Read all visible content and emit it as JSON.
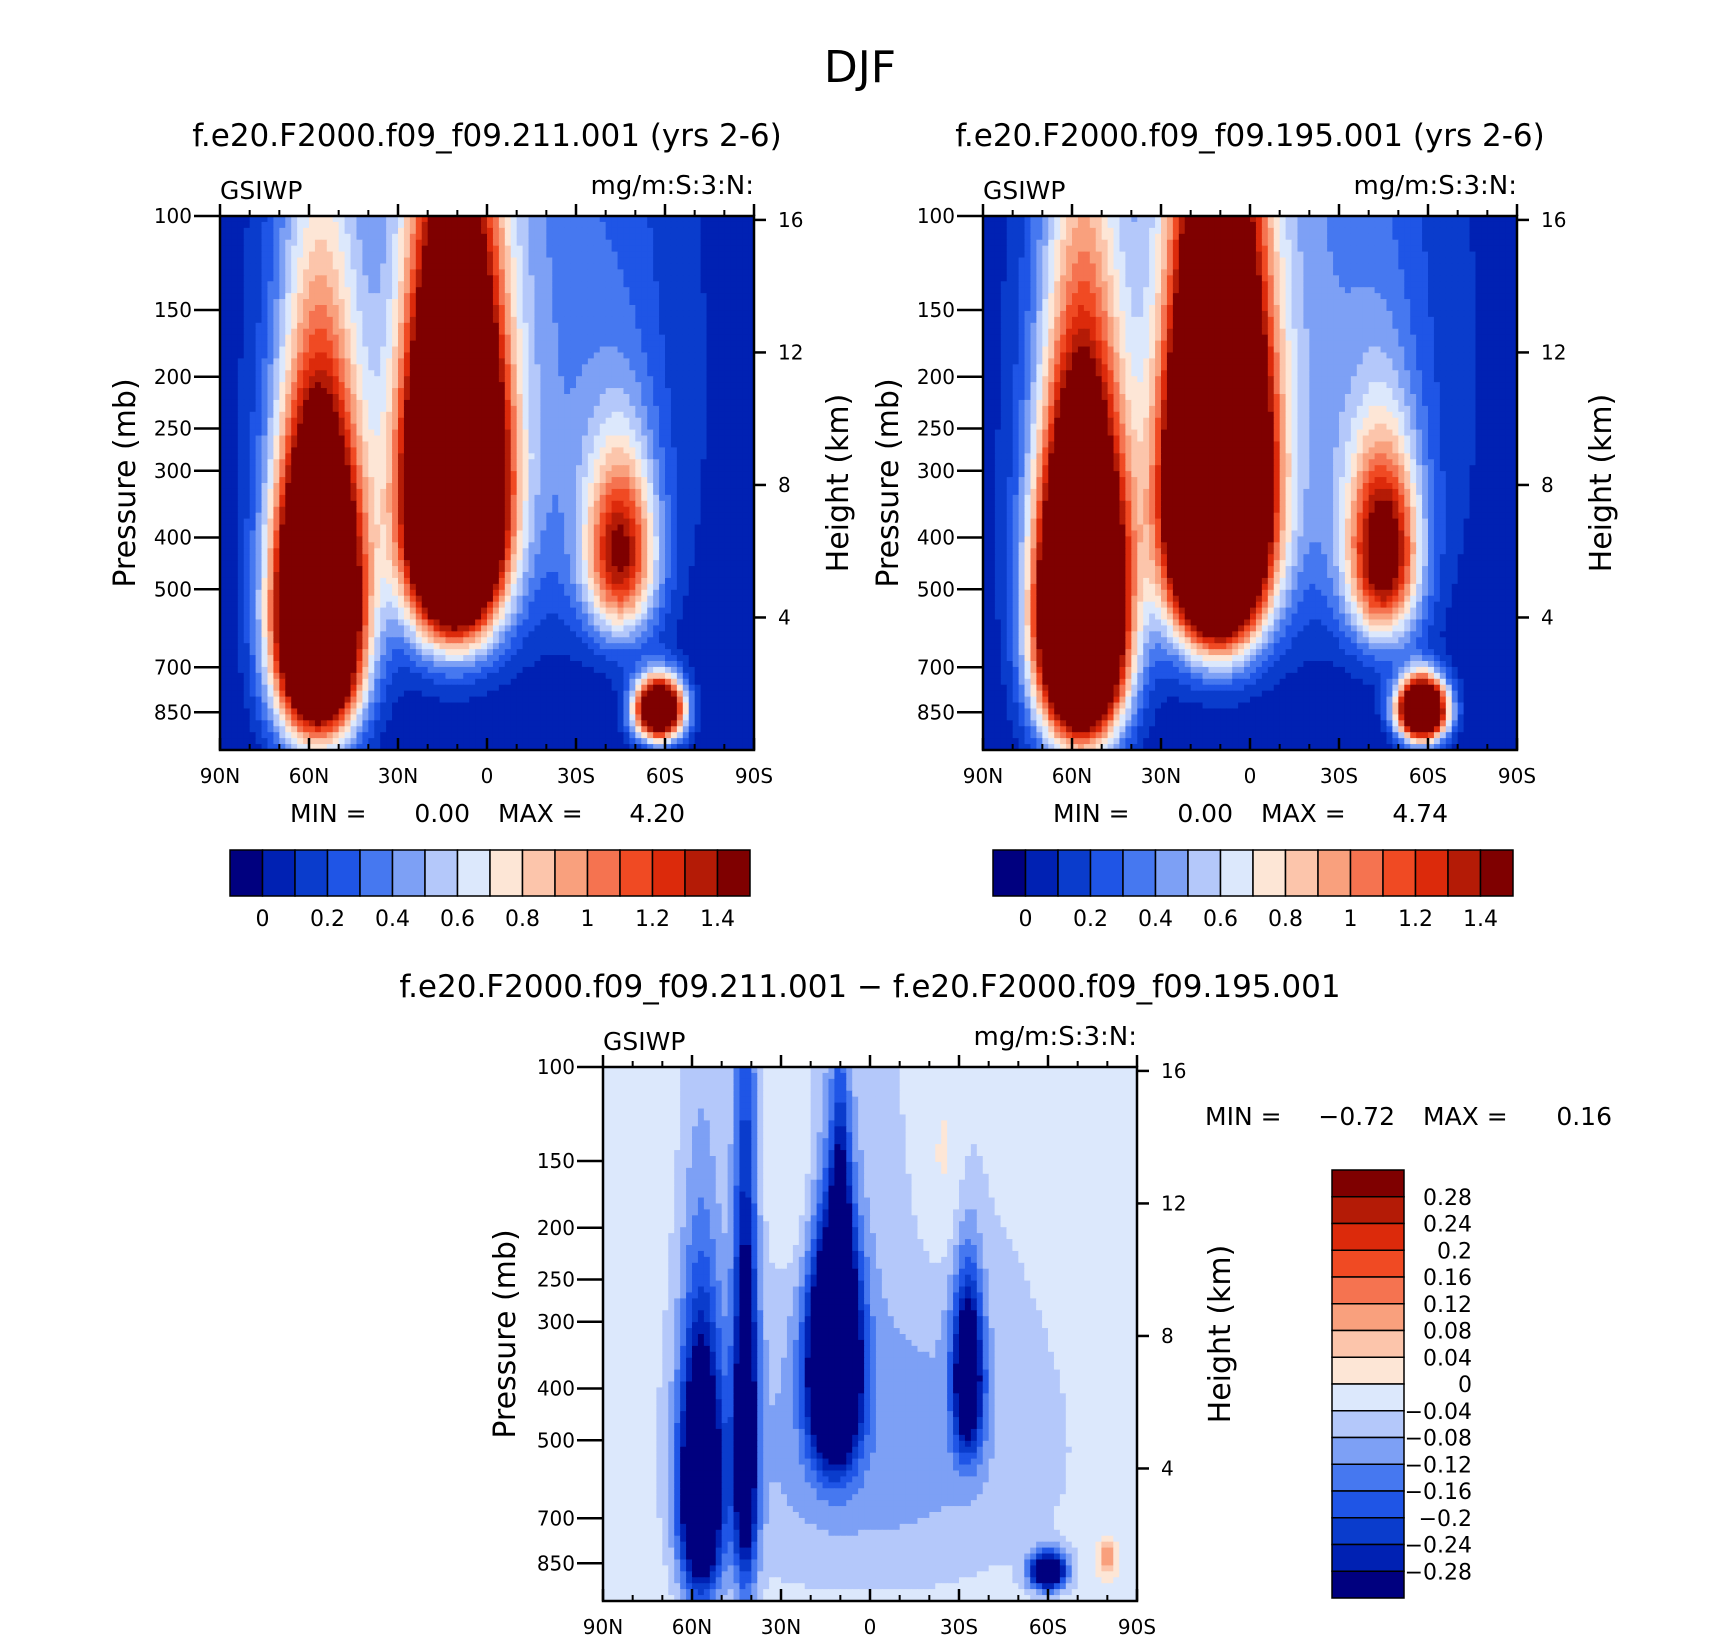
{
  "page_title": "DJF",
  "colors": {
    "abs_scale": [
      "#00007f",
      "#0021b3",
      "#0a3ccc",
      "#1f55e6",
      "#4678f0",
      "#7da0f5",
      "#b4c8fa",
      "#dce8fc",
      "#fde6d6",
      "#fcc5ab",
      "#f9a07d",
      "#f57350",
      "#f04a23",
      "#dc2a0b",
      "#b41b06",
      "#7f0000"
    ],
    "diff_scale": [
      "#7f0000",
      "#b41b06",
      "#dc2a0b",
      "#f04a23",
      "#f57350",
      "#f9a07d",
      "#fcc5ab",
      "#fde6d6",
      "#dce8fc",
      "#b4c8fa",
      "#7da0f5",
      "#4678f0",
      "#1f55e6",
      "#0a3ccc",
      "#0021b3",
      "#00007f"
    ]
  },
  "chart_data": [
    {
      "type": "heatmap",
      "title": "f.e20.F2000.f09_f09.211.001 (yrs 2-6)",
      "left_label": "GSIWP",
      "right_label": "mg/m:S:3:N:",
      "xlabel": "",
      "ylabel": "Pressure (mb)",
      "ylabel_right": "Height (km)",
      "x_ticks": [
        "90N",
        "60N",
        "30N",
        "0",
        "30S",
        "60S",
        "90S"
      ],
      "y_ticks": [
        "100",
        "150",
        "200",
        "250",
        "300",
        "400",
        "500",
        "700",
        "850"
      ],
      "y2_ticks": [
        "16",
        "12",
        "8",
        "4"
      ],
      "ylim": [
        100,
        1000
      ],
      "min_text": "MIN =",
      "min_value": "0.00",
      "max_text": "MAX =",
      "max_value": "4.20",
      "colorbar_labels": [
        "0",
        "0.2",
        "0.4",
        "0.6",
        "0.8",
        "1",
        "1.2",
        "1.4"
      ],
      "levels": [
        0,
        0.1,
        0.2,
        0.3,
        0.4,
        0.5,
        0.6,
        0.7,
        0.8,
        0.9,
        1.0,
        1.1,
        1.2,
        1.3,
        1.4
      ],
      "features": [
        {
          "lat": 11,
          "p": 340,
          "amp": 4.2,
          "slat": 15,
          "sp": 230
        },
        {
          "lat": 57,
          "p": 560,
          "amp": 3.6,
          "slat": 14,
          "sp": 340
        },
        {
          "lat": -45,
          "p": 430,
          "amp": 1.3,
          "slat": 12,
          "sp": 170
        },
        {
          "lat": -58,
          "p": 840,
          "amp": 2.5,
          "slat": 8,
          "sp": 110
        },
        {
          "lat": 0,
          "p": 200,
          "amp": 0.45,
          "slat": 60,
          "sp": 380
        }
      ]
    },
    {
      "type": "heatmap",
      "title": "f.e20.F2000.f09_f09.195.001 (yrs 2-6)",
      "left_label": "GSIWP",
      "right_label": "mg/m:S:3:N:",
      "xlabel": "",
      "ylabel": "Pressure (mb)",
      "ylabel_right": "Height (km)",
      "x_ticks": [
        "90N",
        "60N",
        "30N",
        "0",
        "30S",
        "60S",
        "90S"
      ],
      "y_ticks": [
        "100",
        "150",
        "200",
        "250",
        "300",
        "400",
        "500",
        "700",
        "850"
      ],
      "y2_ticks": [
        "16",
        "12",
        "8",
        "4"
      ],
      "ylim": [
        100,
        1000
      ],
      "min_text": "MIN =",
      "min_value": "0.00",
      "max_text": "MAX =",
      "max_value": "4.74",
      "colorbar_labels": [
        "0",
        "0.2",
        "0.4",
        "0.6",
        "0.8",
        "1",
        "1.2",
        "1.4"
      ],
      "levels": [
        0,
        0.1,
        0.2,
        0.3,
        0.4,
        0.5,
        0.6,
        0.7,
        0.8,
        0.9,
        1.0,
        1.1,
        1.2,
        1.3,
        1.4
      ],
      "features": [
        {
          "lat": 11,
          "p": 340,
          "amp": 4.74,
          "slat": 15,
          "sp": 240
        },
        {
          "lat": 57,
          "p": 560,
          "amp": 4.0,
          "slat": 14,
          "sp": 350
        },
        {
          "lat": -45,
          "p": 430,
          "amp": 1.5,
          "slat": 12,
          "sp": 180
        },
        {
          "lat": -58,
          "p": 840,
          "amp": 2.8,
          "slat": 8,
          "sp": 110
        },
        {
          "lat": 0,
          "p": 200,
          "amp": 0.5,
          "slat": 60,
          "sp": 380
        }
      ]
    },
    {
      "type": "heatmap",
      "title": "f.e20.F2000.f09_f09.211.001 − f.e20.F2000.f09_f09.195.001",
      "left_label": "GSIWP",
      "right_label": "mg/m:S:3:N:",
      "xlabel": "",
      "ylabel": "Pressure (mb)",
      "ylabel_right": "Height (km)",
      "x_ticks": [
        "90N",
        "60N",
        "30N",
        "0",
        "30S",
        "60S",
        "90S"
      ],
      "y_ticks": [
        "100",
        "150",
        "200",
        "250",
        "300",
        "400",
        "500",
        "700",
        "850"
      ],
      "y2_ticks": [
        "16",
        "12",
        "8",
        "4"
      ],
      "ylim": [
        100,
        1000
      ],
      "min_text": "MIN =",
      "min_value": "−0.72",
      "max_text": "MAX =",
      "max_value": "0.16",
      "colorbar_labels": [
        "0.28",
        "0.24",
        "0.2",
        "0.16",
        "0.12",
        "0.08",
        "0.04",
        "0",
        "−0.04",
        "−0.08",
        "−0.12",
        "−0.16",
        "−0.2",
        "−0.24",
        "−0.28"
      ],
      "levels": [
        -0.28,
        -0.24,
        -0.2,
        -0.16,
        -0.12,
        -0.08,
        -0.04,
        0,
        0.04,
        0.08,
        0.12,
        0.16,
        0.2,
        0.24,
        0.28
      ],
      "features": [
        {
          "lat": 12,
          "p": 360,
          "amp": -0.72,
          "slat": 8,
          "sp": 170
        },
        {
          "lat": 57,
          "p": 620,
          "amp": -0.55,
          "slat": 7,
          "sp": 330
        },
        {
          "lat": 42,
          "p": 500,
          "amp": -0.4,
          "slat": 4,
          "sp": 420
        },
        {
          "lat": -33,
          "p": 380,
          "amp": -0.4,
          "slat": 5,
          "sp": 140
        },
        {
          "lat": 10,
          "p": 240,
          "amp": -0.3,
          "slat": 3,
          "sp": 120
        },
        {
          "lat": -60,
          "p": 880,
          "amp": -0.45,
          "slat": 6,
          "sp": 70
        },
        {
          "lat": 0,
          "p": 520,
          "amp": -0.1,
          "slat": 70,
          "sp": 460
        },
        {
          "lat": 20,
          "p": 170,
          "amp": 0.06,
          "slat": 14,
          "sp": 90
        },
        {
          "lat": -25,
          "p": 160,
          "amp": 0.05,
          "slat": 10,
          "sp": 90
        },
        {
          "lat": -80,
          "p": 830,
          "amp": 0.14,
          "slat": 3,
          "sp": 60
        }
      ]
    }
  ]
}
